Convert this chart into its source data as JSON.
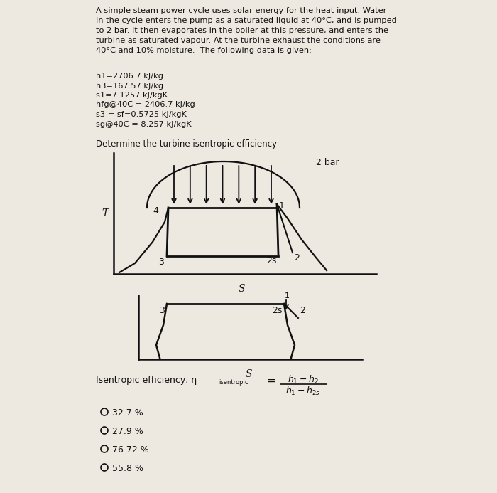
{
  "background_color": "#ede8e0",
  "title_text": "A simple steam power cycle uses solar energy for the heat input. Water\nin the cycle enters the pump as a saturated liquid at 40°C, and is pumped\nto 2 bar. It then evaporates in the boiler at this pressure, and enters the\nturbine as saturated vapour. At the turbine exhaust the conditions are\n40°C and 10% moisture.  The following data is given:",
  "data_lines": [
    "h1=2706.7 kJ/kg",
    "h3=167.57 kJ/kg",
    "s1=7.1257 kJ/kgK",
    "hfg@40C = 2406.7 kJ/kg",
    "s3 = sf=0.5725 kJ/kgK",
    "sg@40C = 8.257 kJ/kgK"
  ],
  "subtitle": "Determine the turbine isentropic efficiency",
  "bar_label": "2 bar",
  "options": [
    "32.7 %",
    "27.9 %",
    "76.72 %",
    "55.8 %"
  ],
  "text_color": "#111111",
  "line_color": "#111111"
}
